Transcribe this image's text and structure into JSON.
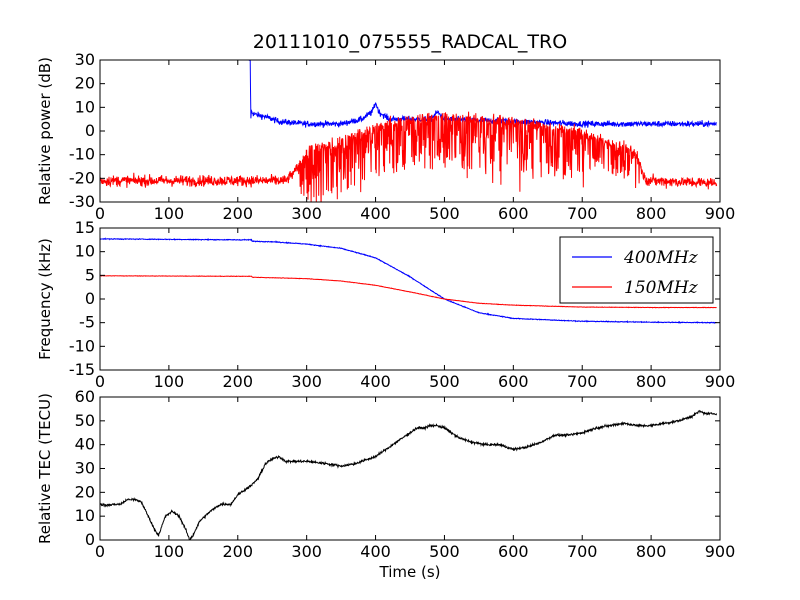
{
  "title": "20111010_075555_RADCAL_TRO",
  "chart_data": [
    {
      "type": "line",
      "xlabel": "",
      "ylabel": "Relative power (dB)",
      "xlim": [
        0,
        900
      ],
      "ylim": [
        -30,
        30
      ],
      "xticks": [
        0,
        100,
        200,
        300,
        400,
        500,
        600,
        700,
        800,
        900
      ],
      "yticks": [
        -30,
        -20,
        -10,
        0,
        10,
        20,
        30
      ],
      "grid": false,
      "series": [
        {
          "color": "#0000ff",
          "noise": 1.2,
          "x": [
            215,
            218,
            219,
            220,
            225,
            240,
            260,
            300,
            350,
            380,
            395,
            400,
            405,
            420,
            480,
            490,
            500,
            600,
            700,
            800,
            895
          ],
          "y": [
            30,
            30,
            6,
            8,
            7,
            6,
            4,
            3,
            3,
            5,
            8,
            12,
            8,
            5,
            5,
            8,
            5,
            4,
            3,
            3,
            3
          ]
        },
        {
          "color": "#ff0000",
          "noise": 2.2,
          "x": [
            0,
            100,
            200,
            270,
            280,
            290,
            300,
            350,
            400,
            450,
            500,
            550,
            600,
            650,
            700,
            730,
            760,
            780,
            790,
            800,
            895
          ],
          "y": [
            -21,
            -21,
            -21,
            -21,
            -18,
            -14,
            -8,
            -4,
            2,
            5,
            6,
            5,
            4,
            2,
            -1,
            -4,
            -7,
            -10,
            -20,
            -21,
            -22
          ],
          "fluct_x": [
            280,
            300,
            650,
            700,
            780,
            790
          ],
          "fluct_amp": [
            0,
            1,
            1,
            0.75,
            0.5,
            0
          ]
        }
      ]
    },
    {
      "type": "line",
      "xlabel": "",
      "ylabel": "Frequency (kHz)",
      "xlim": [
        0,
        900
      ],
      "ylim": [
        -15,
        15
      ],
      "xticks": [
        0,
        100,
        200,
        300,
        400,
        500,
        600,
        700,
        800,
        900
      ],
      "yticks": [
        -15,
        -10,
        -5,
        0,
        5,
        10,
        15
      ],
      "grid": false,
      "legend": "top-right",
      "series": [
        {
          "name": "400MHz",
          "color": "#0000ff",
          "noise": 0.08,
          "x": [
            0,
            100,
            200,
            220,
            221,
            250,
            300,
            350,
            400,
            450,
            500,
            550,
            600,
            700,
            800,
            895
          ],
          "y": [
            12.7,
            12.6,
            12.5,
            12.5,
            12.2,
            12.1,
            11.6,
            10.7,
            8.7,
            4.7,
            0,
            -2.9,
            -4.1,
            -4.7,
            -4.9,
            -5.0
          ]
        },
        {
          "name": "150MHz",
          "color": "#ff0000",
          "noise": 0.04,
          "x": [
            0,
            100,
            200,
            220,
            221,
            300,
            350,
            400,
            450,
            500,
            550,
            600,
            700,
            800,
            895
          ],
          "y": [
            4.9,
            4.85,
            4.8,
            4.8,
            4.6,
            4.3,
            3.8,
            2.9,
            1.5,
            0,
            -0.9,
            -1.3,
            -1.7,
            -1.8,
            -1.8
          ]
        }
      ]
    },
    {
      "type": "line",
      "xlabel": "Time (s)",
      "ylabel": "Relative TEC (TECU)",
      "xlim": [
        0,
        900
      ],
      "ylim": [
        0,
        60
      ],
      "xticks": [
        0,
        100,
        200,
        300,
        400,
        500,
        600,
        700,
        800,
        900
      ],
      "yticks": [
        0,
        10,
        20,
        30,
        40,
        50,
        60
      ],
      "grid": false,
      "series": [
        {
          "color": "#000000",
          "noise": 0.45,
          "x": [
            0,
            10,
            20,
            30,
            40,
            50,
            60,
            70,
            80,
            85,
            95,
            105,
            115,
            125,
            130,
            135,
            145,
            160,
            175,
            190,
            200,
            210,
            220,
            230,
            240,
            250,
            260,
            270,
            280,
            300,
            330,
            350,
            370,
            400,
            420,
            440,
            460,
            470,
            480,
            490,
            500,
            520,
            540,
            560,
            580,
            600,
            620,
            640,
            660,
            680,
            700,
            720,
            740,
            760,
            780,
            800,
            820,
            840,
            860,
            870,
            880,
            895
          ],
          "y": [
            15,
            14.5,
            15,
            15,
            17,
            17,
            16,
            10,
            4,
            2,
            10,
            12,
            10,
            4,
            0,
            2,
            8,
            12,
            15,
            15,
            19,
            21,
            23,
            26,
            32,
            34,
            35,
            33,
            33,
            33,
            32,
            31,
            32,
            35,
            39,
            43,
            47,
            47,
            48,
            48,
            47,
            43,
            41,
            40,
            40,
            38,
            39,
            41,
            44,
            44,
            45,
            47,
            48,
            49,
            48,
            48,
            49,
            50,
            52,
            54,
            53,
            53
          ]
        }
      ]
    }
  ]
}
